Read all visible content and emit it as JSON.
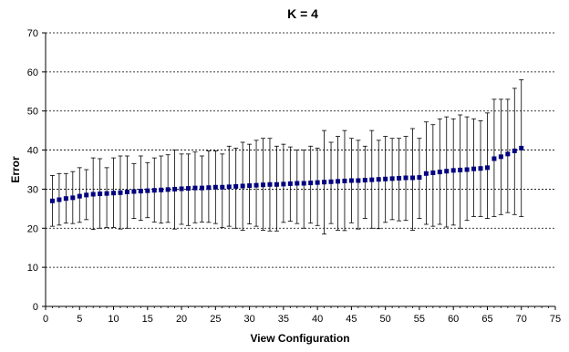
{
  "chart_data": {
    "type": "scatter",
    "title": "K = 4",
    "xlabel": "View Configuration",
    "ylabel": "Error",
    "xlim": [
      0,
      75
    ],
    "ylim": [
      0,
      70
    ],
    "x_ticks": [
      0,
      5,
      10,
      15,
      20,
      25,
      30,
      35,
      40,
      45,
      50,
      55,
      60,
      65,
      70,
      75
    ],
    "y_ticks": [
      0,
      10,
      20,
      30,
      40,
      50,
      60,
      70
    ],
    "grid": "horizontal dashed at y ticks",
    "legend": "none",
    "marker_color": "#000080",
    "errorbar_color": "#000000",
    "series": [
      {
        "x": [
          1,
          2,
          3,
          4,
          5,
          6,
          7,
          8,
          9,
          10,
          11,
          12,
          13,
          14,
          15,
          16,
          17,
          18,
          19,
          20,
          21,
          22,
          23,
          24,
          25,
          26,
          27,
          28,
          29,
          30,
          31,
          32,
          33,
          34,
          35,
          36,
          37,
          38,
          39,
          40,
          41,
          42,
          43,
          44,
          45,
          46,
          47,
          48,
          49,
          50,
          51,
          52,
          53,
          54,
          55,
          56,
          57,
          58,
          59,
          60,
          61,
          62,
          63,
          64,
          65,
          66,
          67,
          68,
          69,
          70
        ],
        "y": [
          27.0,
          27.3,
          27.6,
          27.8,
          28.2,
          28.5,
          28.7,
          28.8,
          28.9,
          29.0,
          29.1,
          29.3,
          29.4,
          29.5,
          29.6,
          29.7,
          29.8,
          29.9,
          30.0,
          30.1,
          30.2,
          30.3,
          30.3,
          30.4,
          30.5,
          30.5,
          30.6,
          30.7,
          30.8,
          30.9,
          31.0,
          31.1,
          31.2,
          31.2,
          31.3,
          31.4,
          31.5,
          31.5,
          31.6,
          31.7,
          31.8,
          31.9,
          32.0,
          32.1,
          32.2,
          32.2,
          32.3,
          32.4,
          32.5,
          32.6,
          32.7,
          32.8,
          32.9,
          32.9,
          33.0,
          34.0,
          34.2,
          34.4,
          34.6,
          34.8,
          34.9,
          35.0,
          35.2,
          35.3,
          35.5,
          37.8,
          38.3,
          39.0,
          39.8,
          40.5
        ],
        "error_low": [
          20.5,
          20.8,
          21.3,
          21.2,
          21.5,
          22.2,
          19.7,
          20.0,
          20.2,
          20.2,
          19.8,
          20.0,
          22.5,
          22.0,
          22.7,
          21.6,
          21.3,
          21.5,
          19.8,
          21.0,
          20.7,
          21.4,
          21.6,
          21.5,
          21.2,
          20.2,
          20.5,
          20.0,
          19.5,
          21.1,
          20.5,
          19.5,
          19.3,
          19.3,
          21.5,
          21.8,
          21.2,
          20.0,
          21.3,
          20.7,
          18.5,
          21.2,
          19.5,
          19.4,
          21.4,
          19.8,
          22.5,
          20.0,
          19.9,
          21.5,
          22.2,
          21.9,
          22.0,
          19.5,
          22.5,
          21.0,
          20.5,
          21.0,
          20.3,
          20.8,
          20.0,
          22.0,
          23.0,
          23.0,
          22.5,
          23.0,
          23.5,
          24.0,
          23.5,
          23.0
        ],
        "error_high": [
          33.5,
          34.0,
          34.0,
          34.5,
          35.5,
          35.0,
          38.0,
          37.8,
          35.5,
          38.0,
          38.5,
          38.5,
          36.5,
          38.5,
          36.8,
          38.0,
          38.5,
          38.8,
          40.0,
          39.0,
          39.0,
          39.5,
          38.5,
          39.8,
          39.8,
          39.0,
          41.0,
          40.5,
          42.0,
          41.5,
          42.5,
          43.0,
          43.0,
          41.0,
          41.5,
          40.8,
          40.0,
          40.0,
          41.0,
          40.5,
          45.0,
          42.0,
          43.5,
          45.0,
          43.0,
          42.5,
          41.0,
          45.0,
          42.5,
          43.5,
          43.0,
          43.0,
          43.5,
          45.5,
          43.0,
          47.2,
          46.5,
          48.0,
          48.5,
          48.0,
          49.0,
          48.5,
          48.0,
          47.5,
          49.5,
          53.0,
          53.0,
          53.0,
          55.8,
          58.0
        ]
      }
    ]
  }
}
